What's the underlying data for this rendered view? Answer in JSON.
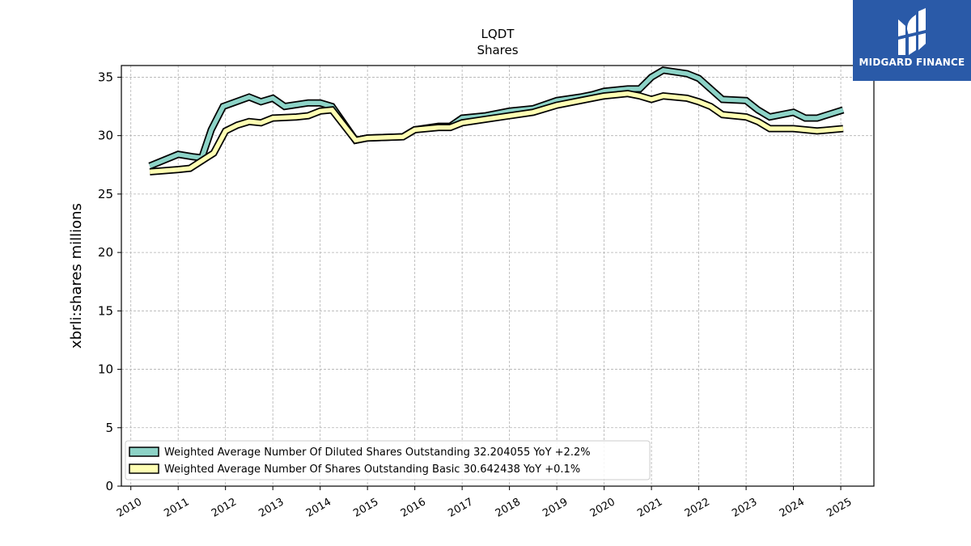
{
  "brand": {
    "name": "MIDGARD FINANCE",
    "bg_color": "#2a5aa8"
  },
  "chart_data": {
    "type": "line",
    "title": "LQDT",
    "subtitle": "Shares",
    "xlabel": "",
    "ylabel": "xbrli:shares millions",
    "xlim": [
      2009.8,
      2025.7
    ],
    "ylim": [
      0,
      36
    ],
    "x_ticks": [
      "2010",
      "2011",
      "2012",
      "2013",
      "2014",
      "2015",
      "2016",
      "2017",
      "2018",
      "2019",
      "2020",
      "2021",
      "2022",
      "2023",
      "2024",
      "2025"
    ],
    "y_ticks": [
      "0",
      "5",
      "10",
      "15",
      "20",
      "25",
      "30",
      "35"
    ],
    "grid": true,
    "legend_position": "lower-left",
    "series": [
      {
        "name": "Weighted Average Number Of Diluted Shares Outstanding  32.204055 YoY +2.2%",
        "color": "#8dd3c7",
        "points": [
          [
            2010.4,
            27.4
          ],
          [
            2011.0,
            28.4
          ],
          [
            2011.3,
            28.2
          ],
          [
            2011.5,
            28.1
          ],
          [
            2011.7,
            30.5
          ],
          [
            2011.95,
            32.5
          ],
          [
            2012.5,
            33.3
          ],
          [
            2012.75,
            32.9
          ],
          [
            2013.0,
            33.2
          ],
          [
            2013.25,
            32.5
          ],
          [
            2013.75,
            32.8
          ],
          [
            2014.0,
            32.8
          ],
          [
            2014.25,
            32.5
          ],
          [
            2014.75,
            29.6
          ],
          [
            2015.0,
            29.8
          ],
          [
            2015.75,
            29.9
          ],
          [
            2016.0,
            30.5
          ],
          [
            2016.5,
            30.8
          ],
          [
            2016.75,
            30.8
          ],
          [
            2017.0,
            31.5
          ],
          [
            2017.5,
            31.7
          ],
          [
            2018.0,
            32.1
          ],
          [
            2018.5,
            32.3
          ],
          [
            2019.0,
            33.0
          ],
          [
            2019.5,
            33.3
          ],
          [
            2019.75,
            33.5
          ],
          [
            2020.0,
            33.8
          ],
          [
            2020.25,
            33.9
          ],
          [
            2020.5,
            34.0
          ],
          [
            2020.75,
            34.0
          ],
          [
            2021.0,
            35.0
          ],
          [
            2021.25,
            35.6
          ],
          [
            2021.75,
            35.3
          ],
          [
            2022.0,
            34.9
          ],
          [
            2022.5,
            33.1
          ],
          [
            2023.0,
            33.0
          ],
          [
            2023.25,
            32.2
          ],
          [
            2023.5,
            31.6
          ],
          [
            2024.0,
            32.0
          ],
          [
            2024.25,
            31.5
          ],
          [
            2024.5,
            31.5
          ],
          [
            2025.05,
            32.2
          ]
        ]
      },
      {
        "name": "Weighted Average Number Of Shares Outstanding Basic  30.642438 YoY +0.1%",
        "color": "#ffffb3",
        "points": [
          [
            2010.4,
            26.9
          ],
          [
            2011.0,
            27.1
          ],
          [
            2011.25,
            27.2
          ],
          [
            2011.75,
            28.5
          ],
          [
            2012.0,
            30.4
          ],
          [
            2012.25,
            30.9
          ],
          [
            2012.5,
            31.2
          ],
          [
            2012.75,
            31.1
          ],
          [
            2013.0,
            31.5
          ],
          [
            2013.5,
            31.6
          ],
          [
            2013.75,
            31.7
          ],
          [
            2014.0,
            32.1
          ],
          [
            2014.25,
            32.2
          ],
          [
            2014.75,
            29.6
          ],
          [
            2015.0,
            29.8
          ],
          [
            2015.75,
            29.9
          ],
          [
            2016.0,
            30.5
          ],
          [
            2016.5,
            30.7
          ],
          [
            2016.75,
            30.7
          ],
          [
            2017.0,
            31.1
          ],
          [
            2017.5,
            31.4
          ],
          [
            2018.0,
            31.7
          ],
          [
            2018.5,
            32.0
          ],
          [
            2019.0,
            32.6
          ],
          [
            2019.5,
            33.0
          ],
          [
            2019.75,
            33.2
          ],
          [
            2020.0,
            33.4
          ],
          [
            2020.5,
            33.6
          ],
          [
            2020.75,
            33.4
          ],
          [
            2021.0,
            33.1
          ],
          [
            2021.25,
            33.4
          ],
          [
            2021.75,
            33.2
          ],
          [
            2022.0,
            32.9
          ],
          [
            2022.25,
            32.5
          ],
          [
            2022.5,
            31.8
          ],
          [
            2023.0,
            31.6
          ],
          [
            2023.25,
            31.2
          ],
          [
            2023.5,
            30.6
          ],
          [
            2024.0,
            30.6
          ],
          [
            2024.5,
            30.4
          ],
          [
            2025.05,
            30.6
          ]
        ]
      }
    ]
  }
}
